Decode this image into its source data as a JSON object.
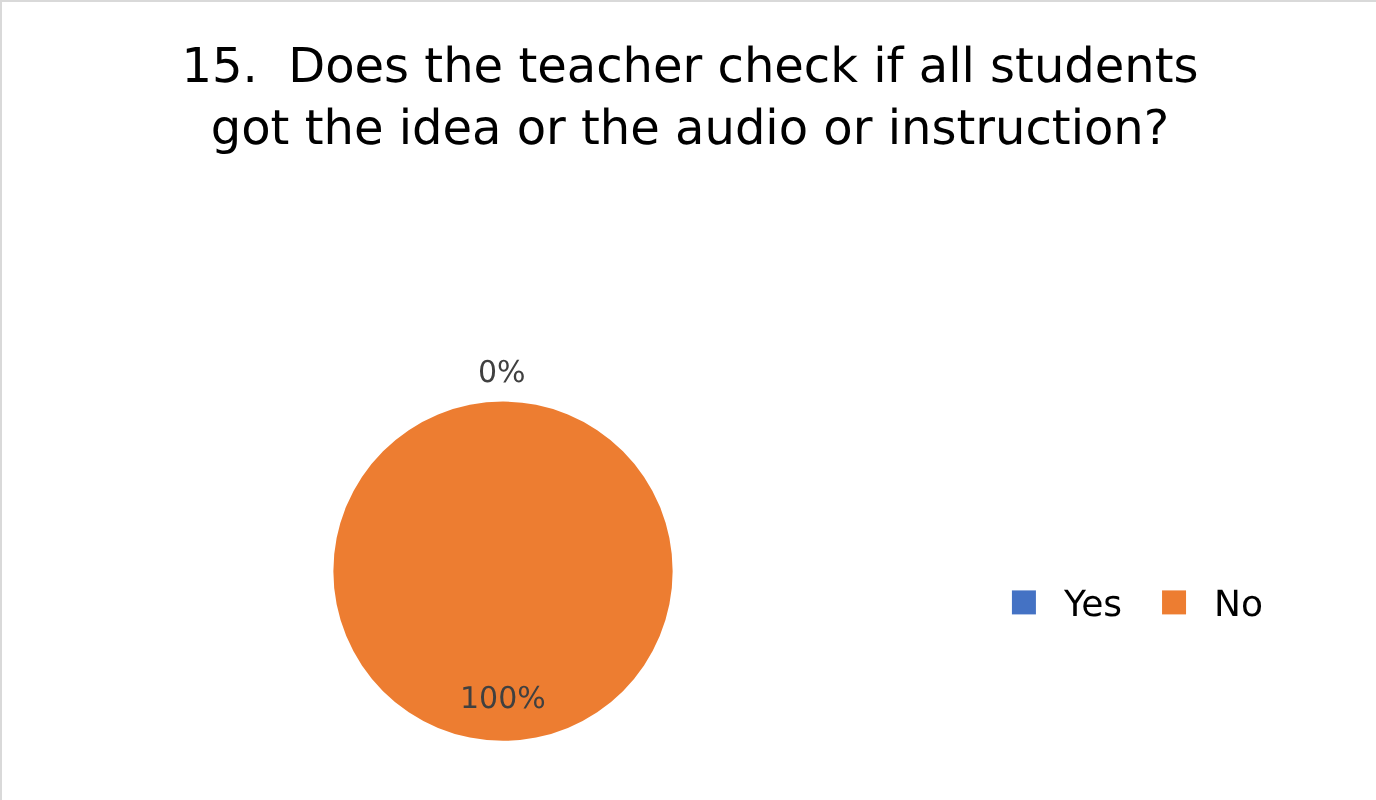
{
  "chart_data": {
    "type": "pie",
    "title": "15.  Does the teacher check if all students got the idea or the audio or instruction?",
    "categories": [
      "Yes",
      "No"
    ],
    "values": [
      0,
      100
    ],
    "colors": [
      "#4472c4",
      "#ed7d31"
    ],
    "value_labels": [
      "0%",
      "100%"
    ],
    "legend": "right"
  }
}
